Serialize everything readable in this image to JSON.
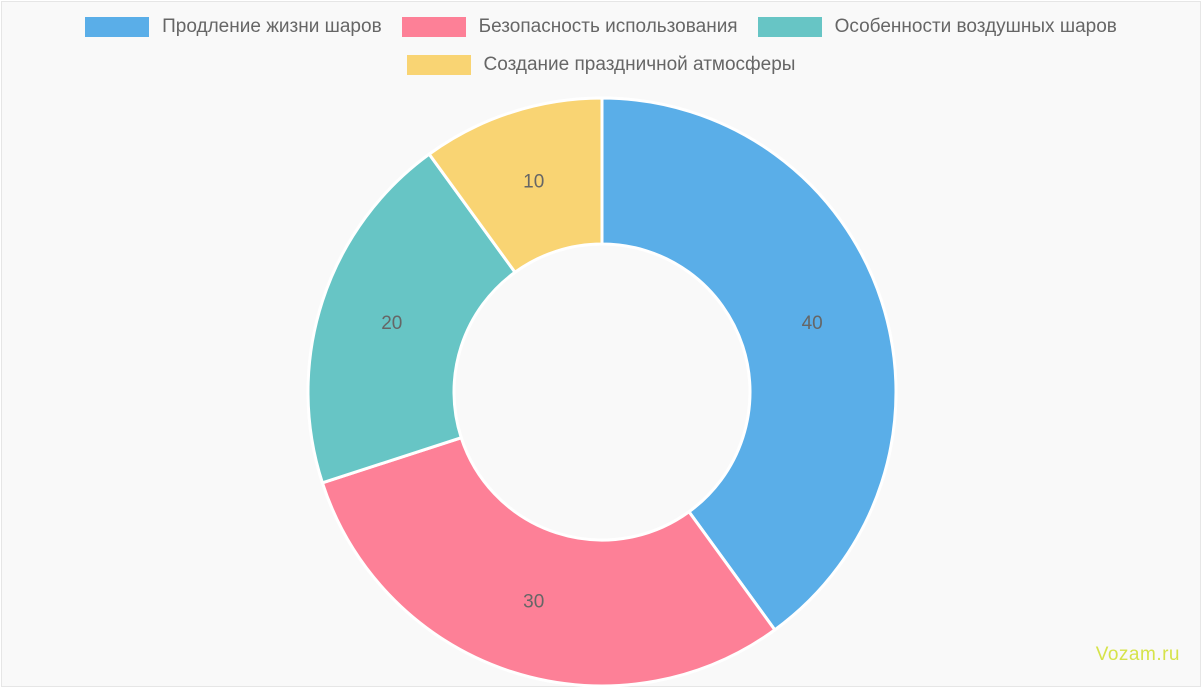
{
  "chart_data": {
    "type": "pie",
    "variant": "doughnut",
    "title": "",
    "categories": [
      "Продление жизни шаров",
      "Безопасность использования",
      "Особенности воздушных шаров",
      "Создание праздничной атмосферы"
    ],
    "values": [
      40,
      30,
      20,
      10
    ],
    "colors": [
      "#5aaee8",
      "#fd8097",
      "#67c5c5",
      "#f9d473"
    ],
    "legend_position": "top",
    "data_labels": [
      "40",
      "30",
      "20",
      "10"
    ]
  },
  "watermark": "Vozam.ru"
}
